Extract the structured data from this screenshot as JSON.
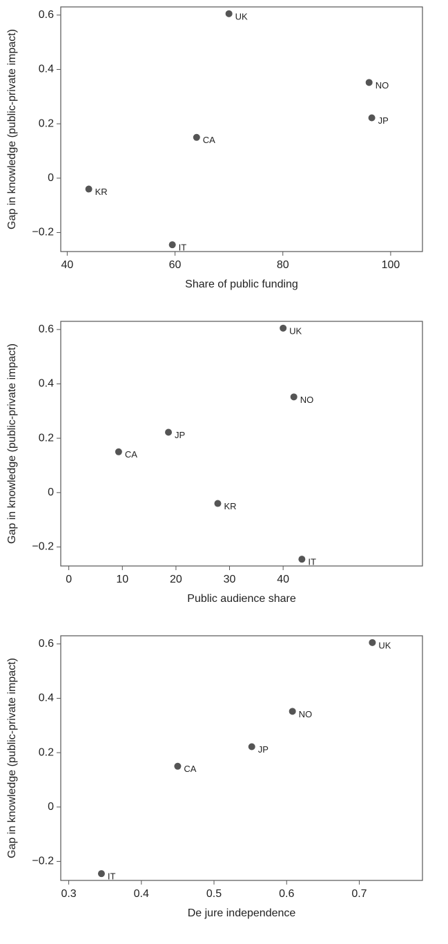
{
  "chart_data": [
    {
      "type": "scatter",
      "xlabel": "Share of public funding",
      "ylabel": "Gap in knowledge (public-private impact)",
      "labels": [
        "UK",
        "NO",
        "JP",
        "CA",
        "KR",
        "IT"
      ],
      "x": [
        70,
        96,
        96.5,
        64,
        44,
        59.5
      ],
      "values": [
        0.605,
        0.352,
        0.222,
        0.15,
        -0.04,
        -0.245
      ],
      "color": "#555555",
      "xlim": [
        38.8,
        105.9
      ],
      "xticks": [
        40,
        60,
        80,
        100
      ],
      "ylim": [
        -0.27,
        0.63
      ],
      "yticks": [
        {
          "value": -0.2,
          "label": "−0.2"
        },
        0,
        0.2,
        0.4,
        0.6
      ]
    },
    {
      "type": "scatter",
      "xlabel": "Public audience share",
      "ylabel": "Gap in knowledge (public-private impact)",
      "labels": [
        "UK",
        "NO",
        "JP",
        "CA",
        "KR",
        "IT"
      ],
      "x": [
        40,
        42,
        18.6,
        9.3,
        27.8,
        43.5
      ],
      "values": [
        0.605,
        0.352,
        0.222,
        0.15,
        -0.04,
        -0.245
      ],
      "color": "#555555",
      "xlim": [
        -1.5,
        66
      ],
      "xticks": [
        0,
        10,
        20,
        30,
        40
      ],
      "ylim": [
        -0.27,
        0.63
      ],
      "yticks": [
        {
          "value": -0.2,
          "label": "−0.2"
        },
        0,
        0.2,
        0.4,
        0.6
      ]
    },
    {
      "type": "scatter",
      "xlabel": "De jure independence",
      "ylabel": "Gap in knowledge (public-private impact)",
      "labels": [
        "UK",
        "NO",
        "JP",
        "CA",
        "IT"
      ],
      "x": [
        0.718,
        0.608,
        0.552,
        0.45,
        0.345
      ],
      "values": [
        0.605,
        0.352,
        0.222,
        0.15,
        -0.245
      ],
      "color": "#555555",
      "xlim": [
        0.289,
        0.787
      ],
      "xticks": [
        0.3,
        0.4,
        0.5,
        0.6,
        0.7
      ],
      "ylim": [
        -0.27,
        0.63
      ],
      "yticks": [
        {
          "value": -0.2,
          "label": "−0.2"
        },
        0,
        0.2,
        0.4,
        0.6
      ]
    }
  ]
}
